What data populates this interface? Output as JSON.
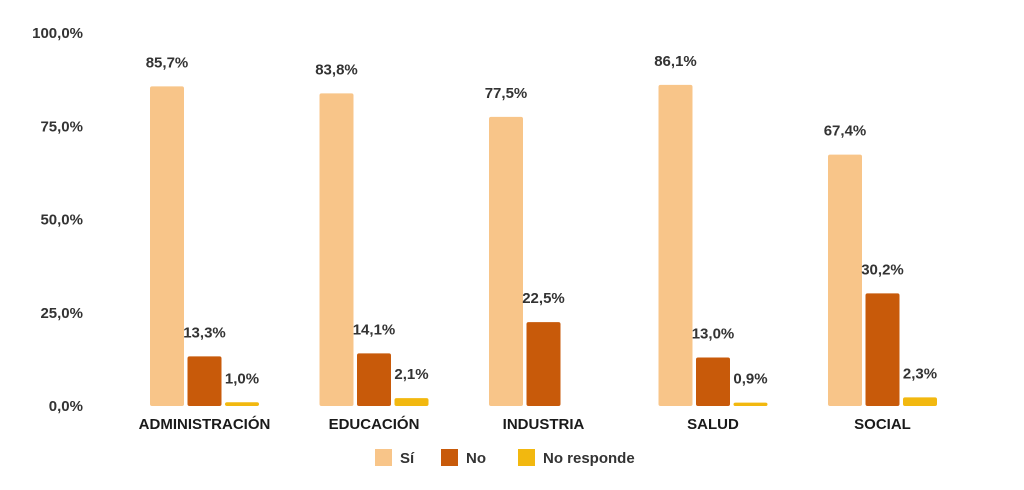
{
  "chart_data": {
    "type": "bar",
    "categories": [
      "ADMINISTRACIÓN",
      "EDUCACIÓN",
      "INDUSTRIA",
      "SALUD",
      "SOCIAL"
    ],
    "series": [
      {
        "name": "Sí",
        "color": "#F8C589",
        "values": [
          85.7,
          83.8,
          77.5,
          86.1,
          67.4
        ],
        "labels": [
          "85,7%",
          "83,8%",
          "77,5%",
          "86,1%",
          "67,4%"
        ]
      },
      {
        "name": "No",
        "color": "#C85A0A",
        "values": [
          13.3,
          14.1,
          22.5,
          13.0,
          30.2
        ],
        "labels": [
          "13,3%",
          "14,1%",
          "22,5%",
          "13,0%",
          "30,2%"
        ]
      },
      {
        "name": "No responde",
        "color": "#F2B80F",
        "values": [
          1.0,
          2.1,
          0,
          0.9,
          2.3
        ],
        "labels": [
          "1,0%",
          "2,1%",
          "",
          "0,9%",
          "2,3%"
        ]
      }
    ],
    "ylim": [
      0,
      100
    ],
    "yticks": [
      0,
      25,
      50,
      75,
      100
    ],
    "ytick_labels": [
      "0,0%",
      "25,0%",
      "50,0%",
      "75,0%",
      "100,0%"
    ],
    "grid": false,
    "legend_position": "bottom"
  }
}
